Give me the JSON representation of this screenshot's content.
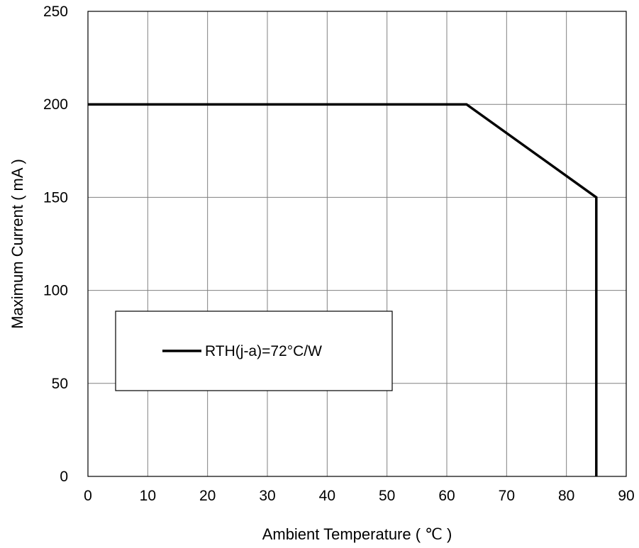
{
  "chart_data": {
    "type": "line",
    "xlabel": "Ambient Temperature ( ℃ )",
    "ylabel": "Maximum Current ( mA )",
    "xlim": [
      0,
      90
    ],
    "ylim": [
      0,
      250
    ],
    "x_ticks": [
      "0",
      "10",
      "20",
      "30",
      "40",
      "50",
      "60",
      "70",
      "80",
      "90"
    ],
    "y_ticks": [
      "0",
      "50",
      "100",
      "150",
      "200",
      "250"
    ],
    "grid": true,
    "legend_position": "left-center",
    "series": [
      {
        "name": "RTH(j-a)=72°C/W",
        "color": "#000000",
        "x": [
          0,
          63.3,
          85,
          85
        ],
        "y": [
          200,
          200,
          150,
          0
        ]
      }
    ]
  }
}
